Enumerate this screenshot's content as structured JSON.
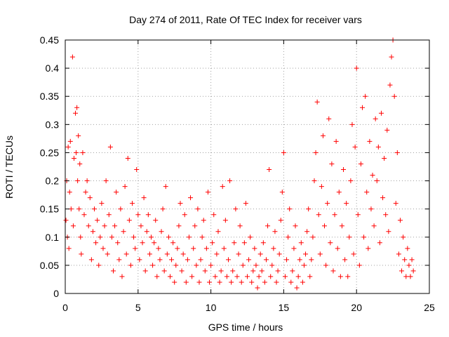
{
  "chart_data": {
    "type": "scatter",
    "title": "Day 274 of 2011, Rate Of TEC Index for receiver vars",
    "xlabel": "GPS time / hours",
    "ylabel": "ROTI / TECUs",
    "xlim": [
      0,
      25
    ],
    "ylim": [
      0,
      0.45
    ],
    "x_ticks": [
      "0",
      "5",
      "10",
      "15",
      "20",
      "25"
    ],
    "y_ticks": [
      "0",
      "0.05",
      "0.1",
      "0.15",
      "0.2",
      "0.25",
      "0.3",
      "0.35",
      "0.4",
      "0.45"
    ],
    "grid": true,
    "marker": "+",
    "color": "#ff0000",
    "series": [
      {
        "points": [
          [
            0.05,
            0.13
          ],
          [
            0.1,
            0.2
          ],
          [
            0.15,
            0.1
          ],
          [
            0.2,
            0.26
          ],
          [
            0.25,
            0.08
          ],
          [
            0.3,
            0.18
          ],
          [
            0.35,
            0.27
          ],
          [
            0.4,
            0.15
          ],
          [
            0.5,
            0.42
          ],
          [
            0.55,
            0.12
          ],
          [
            0.6,
            0.24
          ],
          [
            0.7,
            0.32
          ],
          [
            0.75,
            0.25
          ],
          [
            0.8,
            0.33
          ],
          [
            0.85,
            0.2
          ],
          [
            0.9,
            0.28
          ],
          [
            0.95,
            0.15
          ],
          [
            1.0,
            0.23
          ],
          [
            1.05,
            0.1
          ],
          [
            1.1,
            0.07
          ],
          [
            1.2,
            0.25
          ],
          [
            1.3,
            0.14
          ],
          [
            1.4,
            0.18
          ],
          [
            1.5,
            0.2
          ],
          [
            1.6,
            0.12
          ],
          [
            1.7,
            0.17
          ],
          [
            1.8,
            0.06
          ],
          [
            1.9,
            0.11
          ],
          [
            2.0,
            0.15
          ],
          [
            2.1,
            0.09
          ],
          [
            2.2,
            0.13
          ],
          [
            2.3,
            0.05
          ],
          [
            2.4,
            0.1
          ],
          [
            2.5,
            0.16
          ],
          [
            2.6,
            0.08
          ],
          [
            2.7,
            0.12
          ],
          [
            2.8,
            0.2
          ],
          [
            2.9,
            0.07
          ],
          [
            3.0,
            0.14
          ],
          [
            3.1,
            0.26
          ],
          [
            3.2,
            0.1
          ],
          [
            3.3,
            0.04
          ],
          [
            3.4,
            0.12
          ],
          [
            3.5,
            0.18
          ],
          [
            3.6,
            0.09
          ],
          [
            3.7,
            0.06
          ],
          [
            3.8,
            0.15
          ],
          [
            3.9,
            0.03
          ],
          [
            4.0,
            0.11
          ],
          [
            4.1,
            0.19
          ],
          [
            4.2,
            0.07
          ],
          [
            4.3,
            0.24
          ],
          [
            4.4,
            0.13
          ],
          [
            4.5,
            0.05
          ],
          [
            4.6,
            0.16
          ],
          [
            4.7,
            0.1
          ],
          [
            4.8,
            0.08
          ],
          [
            4.9,
            0.22
          ],
          [
            5.0,
            0.14
          ],
          [
            5.1,
            0.06
          ],
          [
            5.2,
            0.12
          ],
          [
            5.3,
            0.09
          ],
          [
            5.4,
            0.17
          ],
          [
            5.5,
            0.04
          ],
          [
            5.6,
            0.11
          ],
          [
            5.7,
            0.14
          ],
          [
            5.8,
            0.07
          ],
          [
            5.9,
            0.1
          ],
          [
            6.0,
            0.05
          ],
          [
            6.1,
            0.09
          ],
          [
            6.2,
            0.13
          ],
          [
            6.3,
            0.03
          ],
          [
            6.4,
            0.08
          ],
          [
            6.5,
            0.06
          ],
          [
            6.6,
            0.11
          ],
          [
            6.7,
            0.15
          ],
          [
            6.8,
            0.04
          ],
          [
            6.9,
            0.19
          ],
          [
            7.0,
            0.07
          ],
          [
            7.1,
            0.1
          ],
          [
            7.2,
            0.03
          ],
          [
            7.3,
            0.06
          ],
          [
            7.4,
            0.09
          ],
          [
            7.5,
            0.02
          ],
          [
            7.6,
            0.05
          ],
          [
            7.7,
            0.08
          ],
          [
            7.8,
            0.12
          ],
          [
            7.9,
            0.16
          ],
          [
            8.0,
            0.04
          ],
          [
            8.1,
            0.07
          ],
          [
            8.2,
            0.14
          ],
          [
            8.3,
            0.02
          ],
          [
            8.4,
            0.06
          ],
          [
            8.5,
            0.1
          ],
          [
            8.6,
            0.17
          ],
          [
            8.7,
            0.03
          ],
          [
            8.8,
            0.08
          ],
          [
            8.9,
            0.12
          ],
          [
            9.0,
            0.05
          ],
          [
            9.1,
            0.15
          ],
          [
            9.2,
            0.02
          ],
          [
            9.3,
            0.06
          ],
          [
            9.4,
            0.1
          ],
          [
            9.5,
            0.13
          ],
          [
            9.6,
            0.04
          ],
          [
            9.7,
            0.08
          ],
          [
            9.8,
            0.18
          ],
          [
            9.9,
            0.02
          ],
          [
            10.0,
            0.05
          ],
          [
            10.1,
            0.09
          ],
          [
            10.2,
            0.14
          ],
          [
            10.3,
            0.03
          ],
          [
            10.4,
            0.07
          ],
          [
            10.5,
            0.11
          ],
          [
            10.6,
            0.02
          ],
          [
            10.7,
            0.04
          ],
          [
            10.8,
            0.19
          ],
          [
            10.9,
            0.08
          ],
          [
            11.0,
            0.13
          ],
          [
            11.1,
            0.03
          ],
          [
            11.2,
            0.06
          ],
          [
            11.3,
            0.2
          ],
          [
            11.4,
            0.02
          ],
          [
            11.5,
            0.04
          ],
          [
            11.6,
            0.09
          ],
          [
            11.7,
            0.15
          ],
          [
            11.8,
            0.03
          ],
          [
            11.9,
            0.07
          ],
          [
            12.0,
            0.12
          ],
          [
            12.1,
            0.02
          ],
          [
            12.2,
            0.05
          ],
          [
            12.3,
            0.09
          ],
          [
            12.4,
            0.16
          ],
          [
            12.5,
            0.03
          ],
          [
            12.6,
            0.06
          ],
          [
            12.7,
            0.1
          ],
          [
            12.8,
            0.02
          ],
          [
            12.9,
            0.04
          ],
          [
            13.0,
            0.08
          ],
          [
            13.1,
            0.05
          ],
          [
            13.2,
            0.01
          ],
          [
            13.3,
            0.03
          ],
          [
            13.4,
            0.07
          ],
          [
            13.5,
            0.04
          ],
          [
            13.6,
            0.09
          ],
          [
            13.7,
            0.02
          ],
          [
            13.8,
            0.06
          ],
          [
            13.9,
            0.12
          ],
          [
            14.0,
            0.22
          ],
          [
            14.1,
            0.03
          ],
          [
            14.2,
            0.05
          ],
          [
            14.3,
            0.08
          ],
          [
            14.4,
            0.11
          ],
          [
            14.5,
            0.02
          ],
          [
            14.6,
            0.04
          ],
          [
            14.7,
            0.07
          ],
          [
            14.8,
            0.13
          ],
          [
            14.9,
            0.18
          ],
          [
            15.0,
            0.25
          ],
          [
            15.1,
            0.03
          ],
          [
            15.2,
            0.06
          ],
          [
            15.3,
            0.1
          ],
          [
            15.4,
            0.15
          ],
          [
            15.5,
            0.02
          ],
          [
            15.6,
            0.04
          ],
          [
            15.7,
            0.08
          ],
          [
            15.8,
            0.12
          ],
          [
            15.9,
            0.01
          ],
          [
            16.0,
            0.03
          ],
          [
            16.1,
            0.06
          ],
          [
            16.2,
            0.09
          ],
          [
            16.3,
            0.02
          ],
          [
            16.4,
            0.05
          ],
          [
            16.5,
            0.07
          ],
          [
            16.6,
            0.11
          ],
          [
            16.7,
            0.15
          ],
          [
            16.8,
            0.03
          ],
          [
            16.9,
            0.06
          ],
          [
            17.0,
            0.1
          ],
          [
            17.1,
            0.2
          ],
          [
            17.2,
            0.25
          ],
          [
            17.3,
            0.34
          ],
          [
            17.4,
            0.14
          ],
          [
            17.5,
            0.07
          ],
          [
            17.6,
            0.19
          ],
          [
            17.7,
            0.28
          ],
          [
            17.8,
            0.12
          ],
          [
            17.9,
            0.05
          ],
          [
            18.0,
            0.16
          ],
          [
            18.1,
            0.31
          ],
          [
            18.2,
            0.09
          ],
          [
            18.3,
            0.23
          ],
          [
            18.4,
            0.04
          ],
          [
            18.5,
            0.14
          ],
          [
            18.6,
            0.27
          ],
          [
            18.7,
            0.08
          ],
          [
            18.8,
            0.18
          ],
          [
            18.9,
            0.03
          ],
          [
            19.0,
            0.12
          ],
          [
            19.1,
            0.22
          ],
          [
            19.2,
            0.06
          ],
          [
            19.3,
            0.16
          ],
          [
            19.4,
            0.03
          ],
          [
            19.5,
            0.1
          ],
          [
            19.6,
            0.2
          ],
          [
            19.7,
            0.3
          ],
          [
            19.8,
            0.07
          ],
          [
            19.9,
            0.26
          ],
          [
            20.0,
            0.4
          ],
          [
            20.1,
            0.14
          ],
          [
            20.2,
            0.05
          ],
          [
            20.3,
            0.23
          ],
          [
            20.4,
            0.33
          ],
          [
            20.5,
            0.1
          ],
          [
            20.6,
            0.35
          ],
          [
            20.7,
            0.18
          ],
          [
            20.8,
            0.08
          ],
          [
            20.9,
            0.27
          ],
          [
            21.0,
            0.15
          ],
          [
            21.1,
            0.21
          ],
          [
            21.2,
            0.12
          ],
          [
            21.3,
            0.31
          ],
          [
            21.4,
            0.2
          ],
          [
            21.5,
            0.26
          ],
          [
            21.6,
            0.09
          ],
          [
            21.7,
            0.32
          ],
          [
            21.8,
            0.17
          ],
          [
            21.9,
            0.24
          ],
          [
            22.0,
            0.14
          ],
          [
            22.1,
            0.29
          ],
          [
            22.2,
            0.11
          ],
          [
            22.3,
            0.37
          ],
          [
            22.4,
            0.42
          ],
          [
            22.5,
            0.45
          ],
          [
            22.6,
            0.35
          ],
          [
            22.7,
            0.16
          ],
          [
            22.8,
            0.25
          ],
          [
            22.9,
            0.07
          ],
          [
            23.0,
            0.13
          ],
          [
            23.1,
            0.04
          ],
          [
            23.2,
            0.1
          ],
          [
            23.3,
            0.06
          ],
          [
            23.4,
            0.03
          ],
          [
            23.5,
            0.08
          ],
          [
            23.6,
            0.05
          ],
          [
            23.7,
            0.03
          ],
          [
            23.8,
            0.06
          ],
          [
            23.9,
            0.04
          ]
        ]
      }
    ]
  }
}
